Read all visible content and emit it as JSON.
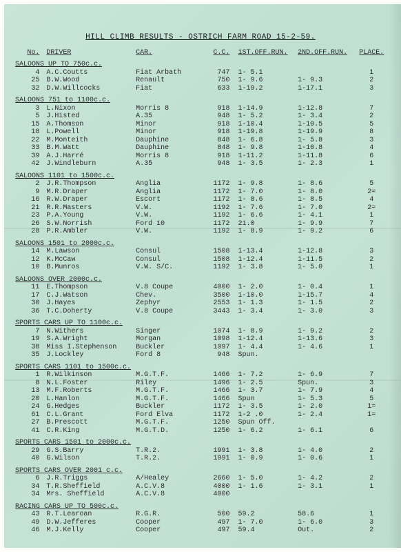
{
  "title": "HILL CLIMB RESULTS - OSTRICH FARM ROAD 15-2-59.",
  "headers": {
    "no": "No.",
    "driver": "DRIVER",
    "car": "CAR.",
    "cc": "C.C.",
    "run1": "1ST.OFF.RUN.",
    "run2": "2ND.OFF.RUN.",
    "place": "PLACE."
  },
  "sections": [
    {
      "label": "SALOONS UP TO 750c.c.",
      "rows": [
        {
          "no": "4",
          "driver": "A.C.Coutts",
          "car": "Fiat Arbath",
          "cc": "747",
          "r1": "1- 5.1",
          "r2": "",
          "place": "1"
        },
        {
          "no": "25",
          "driver": "B.W.Wood",
          "car": "Renault",
          "cc": "750",
          "r1": "1- 9.6",
          "r2": "1- 9.3",
          "place": "2"
        },
        {
          "no": "32",
          "driver": "D.W.Willcocks",
          "car": "Fiat",
          "cc": "633",
          "r1": "1-19.2",
          "r2": "1-17.1",
          "place": "3"
        }
      ]
    },
    {
      "label": "SALOONS 751 to 1100c.c.",
      "rows": [
        {
          "no": "3",
          "driver": "L.Nixon",
          "car": "Morris 8",
          "cc": "918",
          "r1": "1-14.9",
          "r2": "1-12.8",
          "place": "7"
        },
        {
          "no": "5",
          "driver": "J.Histed",
          "car": "A.35",
          "cc": "948",
          "r1": "1- 5.2",
          "r2": "1- 3.4",
          "place": "2"
        },
        {
          "no": "15",
          "driver": "A.Thomson",
          "car": "Minor",
          "cc": "918",
          "r1": "1-10.4",
          "r2": "1-10.5",
          "place": "5"
        },
        {
          "no": "18",
          "driver": "L.Powell",
          "car": "Minor",
          "cc": "918",
          "r1": "1-19.8",
          "r2": "1-19.9",
          "place": "8"
        },
        {
          "no": "22",
          "driver": "M.Monteith",
          "car": "Dauphine",
          "cc": "848",
          "r1": "1- 6.8",
          "r2": "1- 5.8",
          "place": "3"
        },
        {
          "no": "33",
          "driver": "B.M.Watt",
          "car": "Dauphine",
          "cc": "848",
          "r1": "1- 9.8",
          "r2": "1-10.8",
          "place": "4"
        },
        {
          "no": "39",
          "driver": "A.J.Harré",
          "car": "Morris 8",
          "cc": "918",
          "r1": "1-11.2",
          "r2": "1-11.8",
          "place": "6"
        },
        {
          "no": "42",
          "driver": "J.Windleburn",
          "car": "A.35",
          "cc": "948",
          "r1": "1- 3.5",
          "r2": "1- 2.3",
          "place": "1"
        }
      ]
    },
    {
      "label": "SALOONS 1101 to 1500c.c.",
      "rows": [
        {
          "no": "2",
          "driver": "J.R.Thompson",
          "car": "Anglia",
          "cc": "1172",
          "r1": "1- 9.8",
          "r2": "1- 8.6",
          "place": "5"
        },
        {
          "no": "9",
          "driver": "M.R.Draper",
          "car": "Anglia",
          "cc": "1172",
          "r1": "1- 7.0",
          "r2": "1- 8.0",
          "place": "2="
        },
        {
          "no": "16",
          "driver": "R.W.Draper",
          "car": "Escort",
          "cc": "1172",
          "r1": "1- 8.6",
          "r2": "1- 8.5",
          "place": "4"
        },
        {
          "no": "21",
          "driver": "R.R.Masters",
          "car": "V.W.",
          "cc": "1192",
          "r1": "1- 7.6",
          "r2": "1- 7.0",
          "place": "2="
        },
        {
          "no": "23",
          "driver": "P.A.Young",
          "car": "V.W.",
          "cc": "1192",
          "r1": "1- 6.6",
          "r2": "1- 4.1",
          "place": "1"
        },
        {
          "no": "26",
          "driver": "S.W.Norrish",
          "car": "Ford 10",
          "cc": "1172",
          "r1": "  21.0",
          "r2": "1- 9.9",
          "place": "7"
        },
        {
          "no": "28",
          "driver": "P.R.Ambler",
          "car": "V.W.",
          "cc": "1192",
          "r1": "1- 8.9",
          "r2": "1- 9.2",
          "place": "6"
        }
      ]
    },
    {
      "label": "SALOONS 1501 to 2000c.c.",
      "rows": [
        {
          "no": "14",
          "driver": "M.Lawson",
          "car": "Consul",
          "cc": "1508",
          "r1": "1-13.4",
          "r2": "1-12.8",
          "place": "3"
        },
        {
          "no": "12",
          "driver": "K.McCaw",
          "car": "Consul",
          "cc": "1508",
          "r1": "1-12.4",
          "r2": "1-11.5",
          "place": "2"
        },
        {
          "no": "10",
          "driver": "B.Munros",
          "car": "V.W. S/C.",
          "cc": "1192",
          "r1": "1- 3.8",
          "r2": "1- 5.0",
          "place": "1"
        }
      ]
    },
    {
      "label": "SALOONS OVER 2000c.c.",
      "rows": [
        {
          "no": "11",
          "driver": "E.Thompson",
          "car": "V.8 Coupe",
          "cc": "4000",
          "r1": "1- 2.0",
          "r2": "1- 0.4",
          "place": "1"
        },
        {
          "no": "17",
          "driver": "C.J.Watson",
          "car": "Chev.",
          "cc": "3500",
          "r1": "1-10.0",
          "r2": "1-15.7",
          "place": "4"
        },
        {
          "no": "30",
          "driver": "J.Hayes",
          "car": "Zephyr",
          "cc": "2553",
          "r1": "1- 1.3",
          "r2": "1- 1.5",
          "place": "2"
        },
        {
          "no": "36",
          "driver": "T.C.Doherty",
          "car": "V.8 Coupe",
          "cc": "3443",
          "r1": "1- 3.4",
          "r2": "1- 3.0",
          "place": "3"
        }
      ]
    },
    {
      "label": "SPORTS CARS UP TO 1100c.c.",
      "rows": [
        {
          "no": "7",
          "driver": "N.Withers",
          "car": "Singer",
          "cc": "1074",
          "r1": "1- 8.9",
          "r2": "1- 9.2",
          "place": "2"
        },
        {
          "no": "19",
          "driver": "S.A.Wright",
          "car": "Morgan",
          "cc": "1098",
          "r1": "1-12.4",
          "r2": "1-13.6",
          "place": "3"
        },
        {
          "no": "38",
          "driver": "Miss I.Stephenson",
          "car": "Buckler",
          "cc": "1097",
          "r1": "1- 4.4",
          "r2": "1- 4.6",
          "place": "1"
        },
        {
          "no": "35",
          "driver": "J.Lockley",
          "car": "Ford 8",
          "cc": "948",
          "r1": "Spun.",
          "r2": "",
          "place": ""
        }
      ]
    },
    {
      "label": "SPORTS CARS 1101 to 1500c.c.",
      "rows": [
        {
          "no": "1",
          "driver": "R.Wilkinson",
          "car": "M.G.T.F.",
          "cc": "1466",
          "r1": "1- 7.2",
          "r2": "1- 6.9",
          "place": "7"
        },
        {
          "no": "8",
          "driver": "N.L.Foster",
          "car": "Riley",
          "cc": "1496",
          "r1": "1- 2.5",
          "r2": "Spun.",
          "place": "3"
        },
        {
          "no": "13",
          "driver": "M.F.Roberts",
          "car": "M.G.T.F.",
          "cc": "1466",
          "r1": "1- 3.7",
          "r2": "1- 7.9",
          "place": "4"
        },
        {
          "no": "20",
          "driver": "L.Hanlon",
          "car": "M.G.T.F.",
          "cc": "1466",
          "r1": "Spun",
          "r2": "1- 5.3",
          "place": "5"
        },
        {
          "no": "24",
          "driver": "G.Hedges",
          "car": "Buckler",
          "cc": "1172",
          "r1": "1- 3.5",
          "r2": "1- 2.0",
          "place": "1="
        },
        {
          "no": "61",
          "driver": "C.L.Grant",
          "car": "Ford Elva",
          "cc": "1172",
          "r1": "1-2 .0",
          "r2": "1- 2.4",
          "place": "1="
        },
        {
          "no": "27",
          "driver": "B.Prescott",
          "car": "M.G.T.F.",
          "cc": "1250",
          "r1": "Spun Off.",
          "r2": "",
          "place": ""
        },
        {
          "no": "41",
          "driver": "C.R.King",
          "car": "M.G.T.D.",
          "cc": "1250",
          "r1": "1- 6.2",
          "r2": "1- 6.1",
          "place": "6"
        }
      ]
    },
    {
      "label": "SPORTS CARS 1501 to 2000c.c.",
      "rows": [
        {
          "no": "29",
          "driver": "G.S.Barry",
          "car": "T.R.2.",
          "cc": "1991",
          "r1": "1- 3.8",
          "r2": "1- 4.0",
          "place": "2"
        },
        {
          "no": "40",
          "driver": "G.Wilson",
          "car": "T.R.2.",
          "cc": "1991",
          "r1": "1- 0.9",
          "r2": "1- 0.6",
          "place": "1"
        }
      ]
    },
    {
      "label": "SPORTS CARS OVER 2001 c.c.",
      "rows": [
        {
          "no": "6",
          "driver": "J.R.Triggs",
          "car": "A/Healey",
          "cc": "2660",
          "r1": "1- 5.0",
          "r2": "1- 4.2",
          "place": "2"
        },
        {
          "no": "34",
          "driver": "T.R.Sheffield",
          "car": "A.C.V.8",
          "cc": "4000",
          "r1": "1- 1.6",
          "r2": "1- 3.1",
          "place": "1"
        },
        {
          "no": "34",
          "driver": "Mrs. Sheffield",
          "car": "A.C.V.8",
          "cc": "4000",
          "r1": "",
          "r2": "",
          "place": ""
        }
      ]
    },
    {
      "label": "RACING CARS UP TO 500c.c.",
      "rows": [
        {
          "no": "43",
          "driver": "R.T.Learoan",
          "car": "R.G.R.",
          "cc": "500",
          "r1": "59.2",
          "r2": "58.6",
          "place": "1"
        },
        {
          "no": "49",
          "driver": "D.W.Jefferes",
          "car": "Cooper",
          "cc": "497",
          "r1": "1- 7.0",
          "r2": "1- 6.0",
          "place": "3"
        },
        {
          "no": "46",
          "driver": "M.J.Kelly",
          "car": "Cooper",
          "cc": "497",
          "r1": "59.4",
          "r2": "Out.",
          "place": "2"
        }
      ]
    }
  ]
}
